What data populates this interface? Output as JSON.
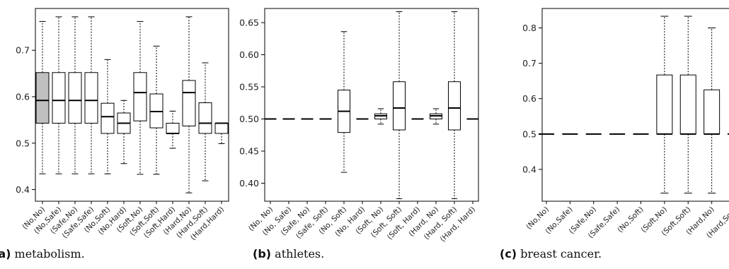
{
  "chart_data": [
    {
      "type": "box",
      "caption_label": "(a)",
      "caption_text": "metabolism.",
      "ylim": [
        0.375,
        0.79
      ],
      "yticks": [
        0.4,
        0.5,
        0.6,
        0.7
      ],
      "ytick_labels": [
        "0.4",
        "0.5",
        "0.6",
        "0.7"
      ],
      "categories": [
        "(No,No)",
        "(No,Safe)",
        "(Safe,No)",
        "(Safe,Safe)",
        "(No,Soft)",
        "(No,Hard)",
        "(Soft,No)",
        "(Soft,Soft)",
        "(Soft,Hard)",
        "(Hard,No)",
        "(Hard,Soft)",
        "(Hard,Hard)"
      ],
      "boxes": [
        {
          "min": 0.434,
          "q1": 0.543,
          "median": 0.592,
          "q3": 0.652,
          "max": 0.762,
          "fill": "#c0c0c0"
        },
        {
          "min": 0.434,
          "q1": 0.543,
          "median": 0.592,
          "q3": 0.652,
          "max": 0.772
        },
        {
          "min": 0.434,
          "q1": 0.543,
          "median": 0.592,
          "q3": 0.652,
          "max": 0.772
        },
        {
          "min": 0.434,
          "q1": 0.543,
          "median": 0.592,
          "q3": 0.652,
          "max": 0.772
        },
        {
          "min": 0.434,
          "q1": 0.521,
          "median": 0.557,
          "q3": 0.586,
          "max": 0.68
        },
        {
          "min": 0.456,
          "q1": 0.521,
          "median": 0.543,
          "q3": 0.565,
          "max": 0.592
        },
        {
          "min": 0.433,
          "q1": 0.548,
          "median": 0.609,
          "q3": 0.652,
          "max": 0.762
        },
        {
          "min": 0.433,
          "q1": 0.533,
          "median": 0.568,
          "q3": 0.606,
          "max": 0.709
        },
        {
          "min": 0.489,
          "q1": 0.521,
          "median": 0.521,
          "q3": 0.543,
          "max": 0.569
        },
        {
          "min": 0.393,
          "q1": 0.537,
          "median": 0.609,
          "q3": 0.635,
          "max": 0.772
        },
        {
          "min": 0.419,
          "q1": 0.521,
          "median": 0.543,
          "q3": 0.587,
          "max": 0.673
        },
        {
          "min": 0.499,
          "q1": 0.521,
          "median": 0.543,
          "q3": 0.543,
          "max": 0.543
        }
      ]
    },
    {
      "type": "box",
      "caption_label": "(b)",
      "caption_text": "athletes.",
      "ylim": [
        0.372,
        0.672
      ],
      "yticks": [
        0.4,
        0.45,
        0.5,
        0.55,
        0.6,
        0.65
      ],
      "ytick_labels": [
        "0.40",
        "0.45",
        "0.50",
        "0.55",
        "0.60",
        "0.65"
      ],
      "categories": [
        "(No, No)",
        "(No, Safe)",
        "(Safe, No)",
        "(Safe, Soft)",
        "(No, Soft)",
        "(No, Hard)",
        "(Soft, No)",
        "(Soft, Soft)",
        "(Soft, Hard)",
        "(Hard, No)",
        "(Hard, Soft)",
        "(Hard, Hard)"
      ],
      "boxes": [
        {
          "min": 0.5,
          "q1": 0.5,
          "median": 0.5,
          "q3": 0.5,
          "max": 0.5
        },
        {
          "min": 0.5,
          "q1": 0.5,
          "median": 0.5,
          "q3": 0.5,
          "max": 0.5
        },
        {
          "min": 0.5,
          "q1": 0.5,
          "median": 0.5,
          "q3": 0.5,
          "max": 0.5
        },
        {
          "min": 0.5,
          "q1": 0.5,
          "median": 0.5,
          "q3": 0.5,
          "max": 0.5
        },
        {
          "min": 0.417,
          "q1": 0.479,
          "median": 0.512,
          "q3": 0.545,
          "max": 0.636
        },
        {
          "min": 0.5,
          "q1": 0.5,
          "median": 0.5,
          "q3": 0.5,
          "max": 0.5
        },
        {
          "min": 0.492,
          "q1": 0.5,
          "median": 0.505,
          "q3": 0.508,
          "max": 0.516
        },
        {
          "min": 0.376,
          "q1": 0.483,
          "median": 0.517,
          "q3": 0.558,
          "max": 0.667
        },
        {
          "min": 0.5,
          "q1": 0.5,
          "median": 0.5,
          "q3": 0.5,
          "max": 0.5
        },
        {
          "min": 0.492,
          "q1": 0.5,
          "median": 0.505,
          "q3": 0.508,
          "max": 0.516
        },
        {
          "min": 0.376,
          "q1": 0.483,
          "median": 0.517,
          "q3": 0.558,
          "max": 0.667
        },
        {
          "min": 0.5,
          "q1": 0.5,
          "median": 0.5,
          "q3": 0.5,
          "max": 0.5
        }
      ]
    },
    {
      "type": "box",
      "caption_label": "(c)",
      "caption_text": "breast cancer.",
      "ylim": [
        0.31,
        0.855
      ],
      "yticks": [
        0.4,
        0.5,
        0.6,
        0.7,
        0.8
      ],
      "ytick_labels": [
        "0.4",
        "0.5",
        "0.6",
        "0.7",
        "0.8"
      ],
      "categories": [
        "(No,No)",
        "(No,Safe)",
        "(Safe,No)",
        "(Safe,Safe)",
        "(No,Soft)",
        "(Soft,No)",
        "(Soft,Soft)",
        "(Hard,No)",
        "(Hard,Soft)"
      ],
      "boxes": [
        {
          "min": 0.5,
          "q1": 0.5,
          "median": 0.5,
          "q3": 0.5,
          "max": 0.5
        },
        {
          "min": 0.5,
          "q1": 0.5,
          "median": 0.5,
          "q3": 0.5,
          "max": 0.5
        },
        {
          "min": 0.5,
          "q1": 0.5,
          "median": 0.5,
          "q3": 0.5,
          "max": 0.5
        },
        {
          "min": 0.5,
          "q1": 0.5,
          "median": 0.5,
          "q3": 0.5,
          "max": 0.5
        },
        {
          "min": 0.5,
          "q1": 0.5,
          "median": 0.5,
          "q3": 0.5,
          "max": 0.5
        },
        {
          "min": 0.333,
          "q1": 0.5,
          "median": 0.5,
          "q3": 0.667,
          "max": 0.833
        },
        {
          "min": 0.333,
          "q1": 0.5,
          "median": 0.5,
          "q3": 0.667,
          "max": 0.833
        },
        {
          "min": 0.333,
          "q1": 0.5,
          "median": 0.5,
          "q3": 0.625,
          "max": 0.8
        },
        {
          "min": 0.5,
          "q1": 0.5,
          "median": 0.5,
          "q3": 0.5,
          "max": 0.5
        }
      ]
    }
  ]
}
